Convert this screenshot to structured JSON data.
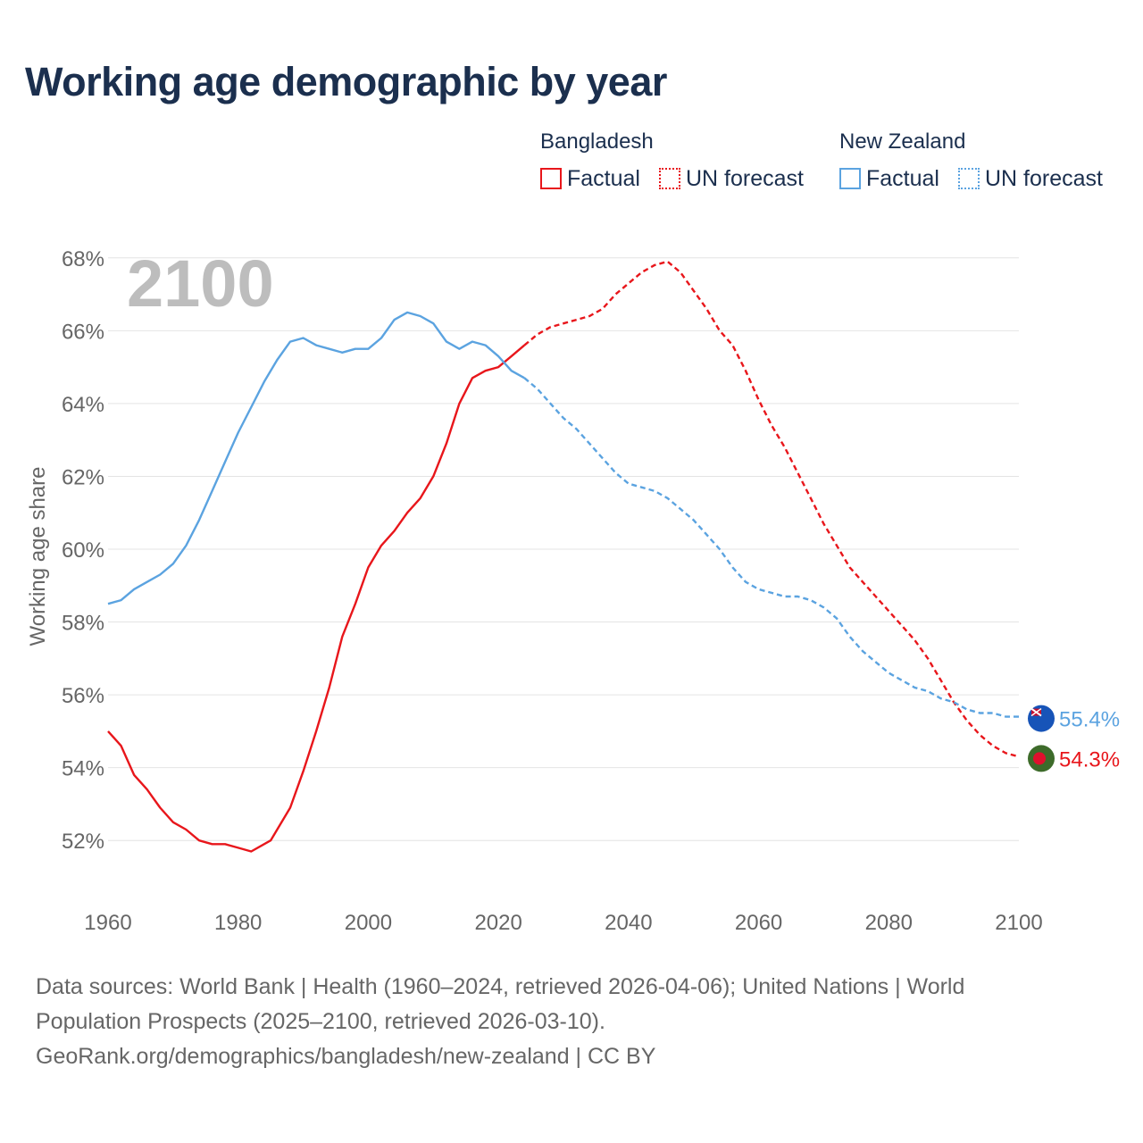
{
  "title": "Working age demographic by year",
  "legend": {
    "groups": [
      {
        "country": "Bangladesh",
        "factual_label": "Factual",
        "forecast_label": "UN forecast",
        "color": "#e8161b"
      },
      {
        "country": "New Zealand",
        "factual_label": "Factual",
        "forecast_label": "UN forecast",
        "color": "#5ba3e0"
      }
    ]
  },
  "footer": {
    "line1": "Data sources: World Bank | Health (1960–2024, retrieved 2026-04-06); United Nations | World",
    "line2": "Population Prospects (2025–2100, retrieved 2026-03-10).",
    "line3": "GeoRank.org/demographics/bangladesh/new-zealand | CC BY"
  },
  "icons": {
    "bangladesh_flag": "bangladesh-flag-icon",
    "new_zealand_flag": "new-zealand-flag-icon"
  },
  "chart_data": {
    "type": "line",
    "title": "Working age demographic by year",
    "ylabel": "Working age share",
    "xlabel": "",
    "year_watermark": "2100",
    "xlim": [
      1960,
      2100
    ],
    "ylim": [
      51,
      69
    ],
    "x_ticks": [
      1960,
      1980,
      2000,
      2020,
      2040,
      2060,
      2080,
      2100
    ],
    "y_ticks": [
      52,
      54,
      56,
      58,
      60,
      62,
      64,
      66,
      68
    ],
    "y_tick_suffix": "%",
    "grid": true,
    "factual_until": 2024,
    "series": [
      {
        "name": "Bangladesh",
        "color": "#e8161b",
        "end_label": "54.3%",
        "points": [
          [
            1960,
            55.0
          ],
          [
            1962,
            54.6
          ],
          [
            1964,
            53.8
          ],
          [
            1966,
            53.4
          ],
          [
            1968,
            52.9
          ],
          [
            1970,
            52.5
          ],
          [
            1972,
            52.3
          ],
          [
            1974,
            52.0
          ],
          [
            1976,
            51.9
          ],
          [
            1978,
            51.9
          ],
          [
            1980,
            51.8
          ],
          [
            1982,
            51.7
          ],
          [
            1985,
            52.0
          ],
          [
            1988,
            52.9
          ],
          [
            1990,
            53.9
          ],
          [
            1992,
            55.0
          ],
          [
            1994,
            56.2
          ],
          [
            1996,
            57.6
          ],
          [
            1998,
            58.5
          ],
          [
            2000,
            59.5
          ],
          [
            2002,
            60.1
          ],
          [
            2004,
            60.5
          ],
          [
            2006,
            61.0
          ],
          [
            2008,
            61.4
          ],
          [
            2010,
            62.0
          ],
          [
            2012,
            62.9
          ],
          [
            2014,
            64.0
          ],
          [
            2016,
            64.7
          ],
          [
            2018,
            64.9
          ],
          [
            2020,
            65.0
          ],
          [
            2022,
            65.3
          ],
          [
            2024,
            65.6
          ],
          [
            2026,
            65.9
          ],
          [
            2028,
            66.1
          ],
          [
            2030,
            66.2
          ],
          [
            2032,
            66.3
          ],
          [
            2034,
            66.4
          ],
          [
            2036,
            66.6
          ],
          [
            2038,
            67.0
          ],
          [
            2040,
            67.3
          ],
          [
            2042,
            67.6
          ],
          [
            2044,
            67.8
          ],
          [
            2046,
            67.9
          ],
          [
            2048,
            67.6
          ],
          [
            2050,
            67.1
          ],
          [
            2052,
            66.6
          ],
          [
            2054,
            66.0
          ],
          [
            2056,
            65.6
          ],
          [
            2058,
            64.9
          ],
          [
            2060,
            64.1
          ],
          [
            2062,
            63.4
          ],
          [
            2064,
            62.8
          ],
          [
            2066,
            62.1
          ],
          [
            2068,
            61.4
          ],
          [
            2070,
            60.7
          ],
          [
            2072,
            60.1
          ],
          [
            2074,
            59.5
          ],
          [
            2076,
            59.1
          ],
          [
            2078,
            58.7
          ],
          [
            2080,
            58.3
          ],
          [
            2082,
            57.9
          ],
          [
            2084,
            57.5
          ],
          [
            2086,
            57.0
          ],
          [
            2088,
            56.4
          ],
          [
            2090,
            55.8
          ],
          [
            2092,
            55.3
          ],
          [
            2094,
            54.9
          ],
          [
            2096,
            54.6
          ],
          [
            2098,
            54.4
          ],
          [
            2100,
            54.3
          ]
        ]
      },
      {
        "name": "New Zealand",
        "color": "#5ba3e0",
        "end_label": "55.4%",
        "points": [
          [
            1960,
            58.5
          ],
          [
            1962,
            58.6
          ],
          [
            1964,
            58.9
          ],
          [
            1966,
            59.1
          ],
          [
            1968,
            59.3
          ],
          [
            1970,
            59.6
          ],
          [
            1972,
            60.1
          ],
          [
            1974,
            60.8
          ],
          [
            1976,
            61.6
          ],
          [
            1978,
            62.4
          ],
          [
            1980,
            63.2
          ],
          [
            1982,
            63.9
          ],
          [
            1984,
            64.6
          ],
          [
            1986,
            65.2
          ],
          [
            1988,
            65.7
          ],
          [
            1990,
            65.8
          ],
          [
            1992,
            65.6
          ],
          [
            1994,
            65.5
          ],
          [
            1996,
            65.4
          ],
          [
            1998,
            65.5
          ],
          [
            2000,
            65.5
          ],
          [
            2002,
            65.8
          ],
          [
            2004,
            66.3
          ],
          [
            2006,
            66.5
          ],
          [
            2008,
            66.4
          ],
          [
            2010,
            66.2
          ],
          [
            2012,
            65.7
          ],
          [
            2014,
            65.5
          ],
          [
            2016,
            65.7
          ],
          [
            2018,
            65.6
          ],
          [
            2020,
            65.3
          ],
          [
            2022,
            64.9
          ],
          [
            2024,
            64.7
          ],
          [
            2026,
            64.4
          ],
          [
            2028,
            64.0
          ],
          [
            2030,
            63.6
          ],
          [
            2032,
            63.3
          ],
          [
            2034,
            62.9
          ],
          [
            2036,
            62.5
          ],
          [
            2038,
            62.1
          ],
          [
            2040,
            61.8
          ],
          [
            2042,
            61.7
          ],
          [
            2044,
            61.6
          ],
          [
            2046,
            61.4
          ],
          [
            2048,
            61.1
          ],
          [
            2050,
            60.8
          ],
          [
            2052,
            60.4
          ],
          [
            2054,
            60.0
          ],
          [
            2056,
            59.5
          ],
          [
            2058,
            59.1
          ],
          [
            2060,
            58.9
          ],
          [
            2062,
            58.8
          ],
          [
            2064,
            58.7
          ],
          [
            2066,
            58.7
          ],
          [
            2068,
            58.6
          ],
          [
            2070,
            58.4
          ],
          [
            2072,
            58.1
          ],
          [
            2074,
            57.6
          ],
          [
            2076,
            57.2
          ],
          [
            2078,
            56.9
          ],
          [
            2080,
            56.6
          ],
          [
            2082,
            56.4
          ],
          [
            2084,
            56.2
          ],
          [
            2086,
            56.1
          ],
          [
            2088,
            55.9
          ],
          [
            2090,
            55.8
          ],
          [
            2092,
            55.6
          ],
          [
            2094,
            55.5
          ],
          [
            2096,
            55.5
          ],
          [
            2098,
            55.4
          ],
          [
            2100,
            55.4
          ]
        ]
      }
    ]
  }
}
